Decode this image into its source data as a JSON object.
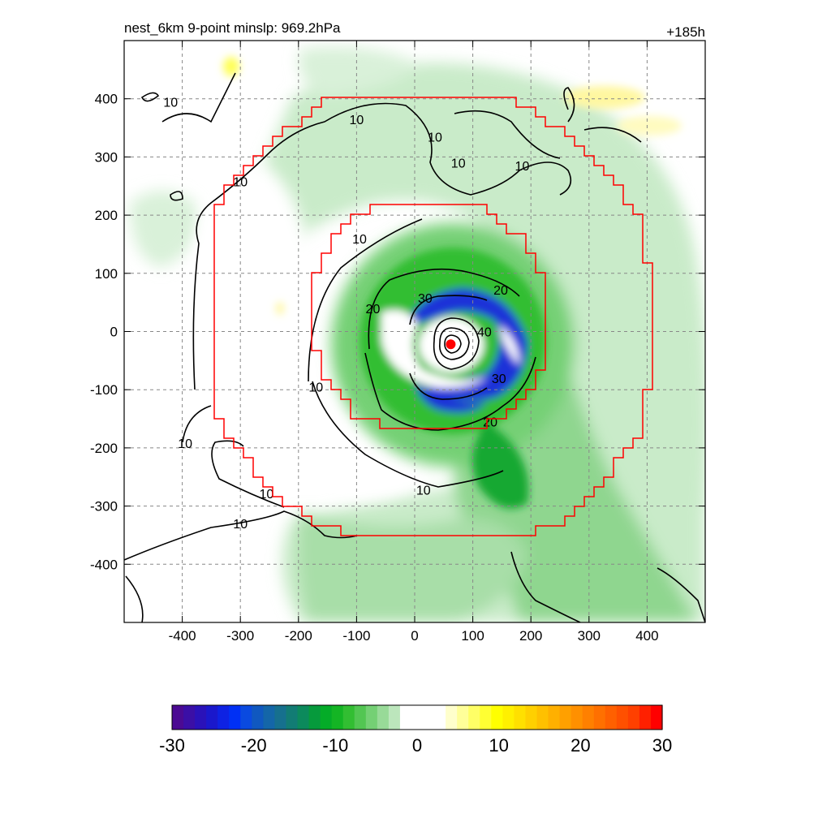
{
  "chart_data": {
    "type": "heatmap",
    "title": "nest_6km  9-point minslp: 969.2hPa",
    "forecast_hour": "+185h",
    "xlim": [
      -500,
      500
    ],
    "ylim": [
      -500,
      500
    ],
    "x_ticks": [
      -400,
      -300,
      -200,
      -100,
      0,
      100,
      200,
      300,
      400
    ],
    "y_ticks": [
      400,
      300,
      200,
      100,
      0,
      -100,
      -200,
      -300,
      -400
    ],
    "x_tick_labels": [
      "-400",
      "-300",
      "-200",
      "-100",
      "0",
      "100",
      "200",
      "300",
      "400"
    ],
    "y_tick_labels": [
      "400",
      "300",
      "200",
      "100",
      "0",
      "-100",
      "-200",
      "-300",
      "-400"
    ],
    "grid": true,
    "storm_center": [
      62,
      -22
    ],
    "center_marker_color": "#ff0000",
    "nest_boundary_color": "#ff0000",
    "nest_boundaries": [
      {
        "name": "",
        "x_range": [
          -380,
          430
        ],
        "y_range": [
          -380,
          425
        ]
      },
      {
        "name": "",
        "x_range": [
          -185,
          235
        ],
        "y_range": [
          -185,
          235
        ]
      }
    ],
    "contours": [
      {
        "value": 10,
        "label": "10"
      },
      {
        "value": 20,
        "label": "20"
      },
      {
        "value": 30,
        "label": "30"
      },
      {
        "value": 40,
        "label": "40"
      }
    ],
    "contour_labels": [
      {
        "text": "10",
        "x": -420,
        "y": 395
      },
      {
        "text": "10",
        "x": -100,
        "y": 365
      },
      {
        "text": "10",
        "x": 35,
        "y": 335
      },
      {
        "text": "10",
        "x": 75,
        "y": 290
      },
      {
        "text": "10",
        "x": 185,
        "y": 285
      },
      {
        "text": "10",
        "x": -300,
        "y": 258
      },
      {
        "text": "10",
        "x": -95,
        "y": 160
      },
      {
        "text": "10",
        "x": -170,
        "y": -95
      },
      {
        "text": "10",
        "x": -395,
        "y": -192
      },
      {
        "text": "10",
        "x": -255,
        "y": -278
      },
      {
        "text": "10",
        "x": -300,
        "y": -330
      },
      {
        "text": "10",
        "x": 15,
        "y": -272
      },
      {
        "text": "20",
        "x": -72,
        "y": 40
      },
      {
        "text": "20",
        "x": 148,
        "y": 72
      },
      {
        "text": "20",
        "x": 130,
        "y": -155
      },
      {
        "text": "30",
        "x": 18,
        "y": 58
      },
      {
        "text": "30",
        "x": 145,
        "y": -80
      },
      {
        "text": "40",
        "x": 120,
        "y": 0
      }
    ],
    "colorbar": {
      "min": -30,
      "max": 30,
      "tick_values": [
        -30,
        -20,
        -10,
        0,
        10,
        20,
        30
      ],
      "tick_labels": [
        "-30",
        "-20",
        "-10",
        "0",
        "10",
        "20",
        "30"
      ],
      "colors": [
        "#4b0a93",
        "#3b0fa6",
        "#2a12b9",
        "#1a18cc",
        "#0e22e3",
        "#0030f5",
        "#0a4ae0",
        "#1058c0",
        "#1466a8",
        "#16708e",
        "#127c74",
        "#0c8a5c",
        "#069a3c",
        "#04ac28",
        "#14b524",
        "#32be32",
        "#52c652",
        "#74d074",
        "#98da98",
        "#bce6bc",
        "#ffffff",
        "#ffffff",
        "#ffffff",
        "#ffffff",
        "#ffffcc",
        "#ffff99",
        "#ffff66",
        "#ffff33",
        "#ffff00",
        "#fff000",
        "#ffe000",
        "#ffd000",
        "#ffc000",
        "#ffb000",
        "#ffa000",
        "#ff9000",
        "#ff8000",
        "#ff7000",
        "#ff6000",
        "#ff5000",
        "#ff4000",
        "#ff2000",
        "#ff0000"
      ]
    }
  }
}
